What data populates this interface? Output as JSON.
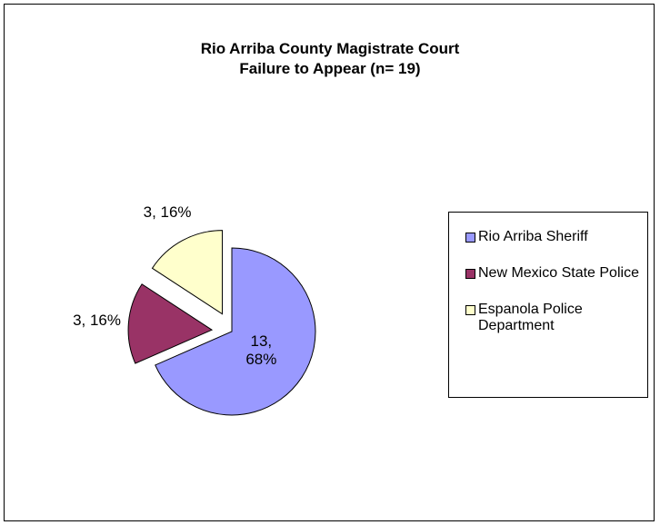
{
  "chart_data": {
    "type": "pie",
    "title": [
      "Rio Arriba County Magistrate Court",
      "Failure to Appear (n= 19)"
    ],
    "categories": [
      "Rio Arriba Sheriff",
      "New Mexico State Police",
      "Espanola Police Department"
    ],
    "values": [
      13,
      3,
      3
    ],
    "value_labels": [
      "13, 68%",
      "3, 16%",
      "3, 16%"
    ],
    "colors": [
      "#9999ff",
      "#993366",
      "#ffffcc"
    ],
    "exploded": [
      false,
      true,
      true
    ],
    "legend": "right"
  }
}
